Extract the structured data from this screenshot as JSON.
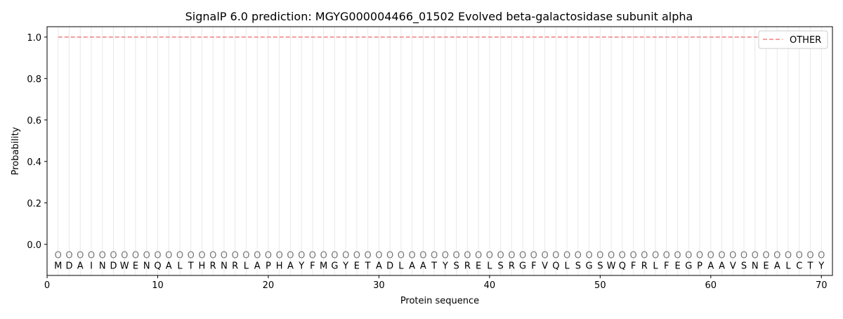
{
  "chart_data": {
    "type": "line",
    "title": "SignalP 6.0 prediction: MGYG000004466_01502 Evolved beta-galactosidase subunit alpha",
    "xlabel": "Protein sequence",
    "ylabel": "Probability",
    "xlim": [
      0,
      71
    ],
    "ylim": [
      -0.15,
      1.05
    ],
    "xticks": [
      0,
      10,
      20,
      30,
      40,
      50,
      60,
      70
    ],
    "yticks": [
      "0.0",
      "0.2",
      "0.4",
      "0.6",
      "0.8",
      "1.0"
    ],
    "grid": "vertical lines at each residue",
    "legend_position": "top-right",
    "sequence": [
      "M",
      "D",
      "A",
      "I",
      "N",
      "D",
      "W",
      "E",
      "N",
      "Q",
      "A",
      "L",
      "T",
      "H",
      "R",
      "N",
      "R",
      "L",
      "A",
      "P",
      "H",
      "A",
      "Y",
      "F",
      "M",
      "G",
      "Y",
      "E",
      "T",
      "A",
      "D",
      "L",
      "A",
      "A",
      "T",
      "Y",
      "S",
      "R",
      "E",
      "L",
      "S",
      "R",
      "G",
      "F",
      "V",
      "Q",
      "L",
      "S",
      "G",
      "S",
      "W",
      "Q",
      "F",
      "R",
      "L",
      "F",
      "E",
      "G",
      "P",
      "A",
      "A",
      "V",
      "S",
      "N",
      "E",
      "A",
      "L",
      "C",
      "T",
      "Y"
    ],
    "predicted_labels": "OOOOOOOOOOOOOOOOOOOOOOOOOOOOOOOOOOOOOOOOOOOOOOOOOOOOOOOOOOOOOOOOOOOOOO",
    "series": [
      {
        "name": "OTHER",
        "color": "#f08080",
        "style": "dashed",
        "x_start": 1,
        "x_end": 70,
        "value": 1.0
      }
    ]
  }
}
